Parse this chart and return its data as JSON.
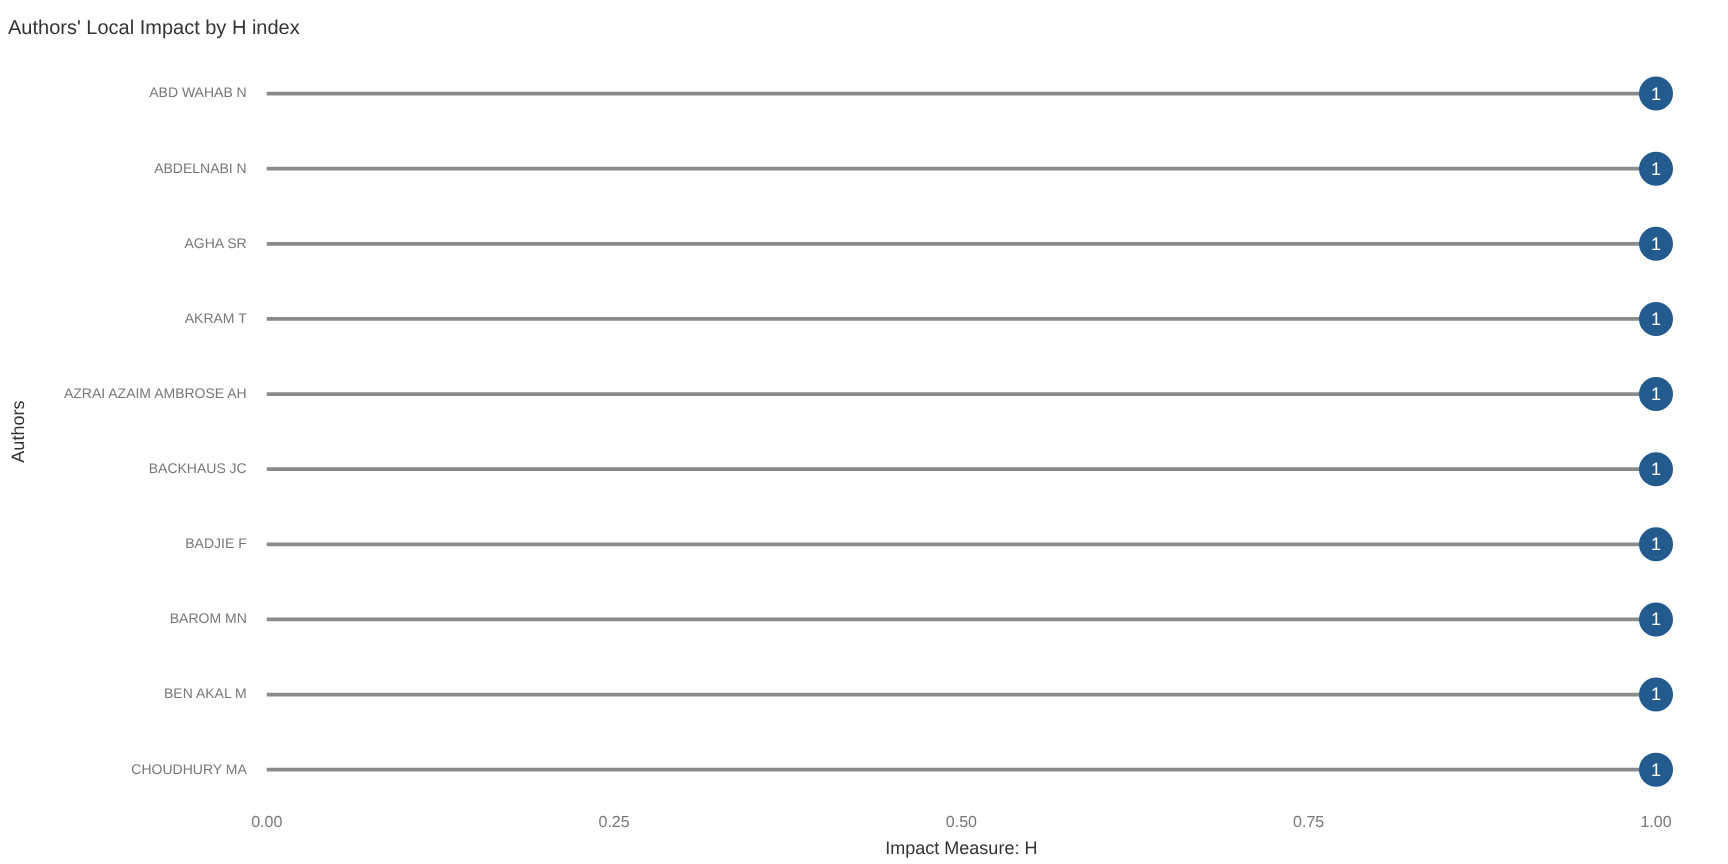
{
  "chart_data": {
    "type": "lollipop",
    "orientation": "horizontal",
    "title": "Authors' Local Impact by H index",
    "xlabel": "Impact Measure: H",
    "ylabel": "Authors",
    "categories": [
      "ABD WAHAB N",
      "ABDELNABI N",
      "AGHA SR",
      "AKRAM T",
      "AZRAI AZAIM AMBROSE AH",
      "BACKHAUS JC",
      "BADJIE F",
      "BAROM MN",
      "BEN AKAL M",
      "CHOUDHURY MA"
    ],
    "values": [
      1,
      1,
      1,
      1,
      1,
      1,
      1,
      1,
      1,
      1
    ],
    "color": "#235b8e",
    "data_labels": true,
    "grid": false,
    "legend": false,
    "xlim": [
      0,
      1
    ],
    "xticks": [
      {
        "value": 0,
        "label": "0.00"
      },
      {
        "value": 0.25,
        "label": "0.25"
      },
      {
        "value": 0.5,
        "label": "0.50"
      },
      {
        "value": 0.75,
        "label": "0.75"
      },
      {
        "value": 1,
        "label": "1.00"
      }
    ]
  }
}
